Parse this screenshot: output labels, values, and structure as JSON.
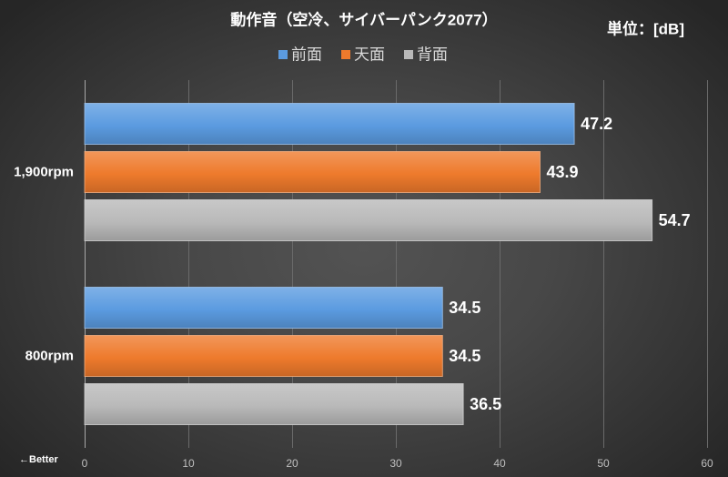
{
  "chart_data": {
    "type": "bar",
    "horizontal": true,
    "title": "動作音（空冷、サイバーパンク2077）",
    "unit_label": "単位：[dB]",
    "categories": [
      "1,900rpm",
      "800rpm"
    ],
    "series": [
      {
        "name": "前面",
        "color": "#5b9be0",
        "values": [
          47.2,
          34.5
        ]
      },
      {
        "name": "天面",
        "color": "#ee7a2c",
        "values": [
          43.9,
          34.5
        ]
      },
      {
        "name": "背面",
        "color": "#b9b9b9",
        "values": [
          54.7,
          36.5
        ]
      }
    ],
    "xlim": [
      0,
      60
    ],
    "xticks": [
      0,
      10,
      20,
      30,
      40,
      50,
      60
    ],
    "xtick_labels": [
      "0",
      "10",
      "20",
      "30",
      "40",
      "50",
      "60"
    ],
    "axis_note": "←Better",
    "grid": true,
    "legend_position": "top"
  }
}
